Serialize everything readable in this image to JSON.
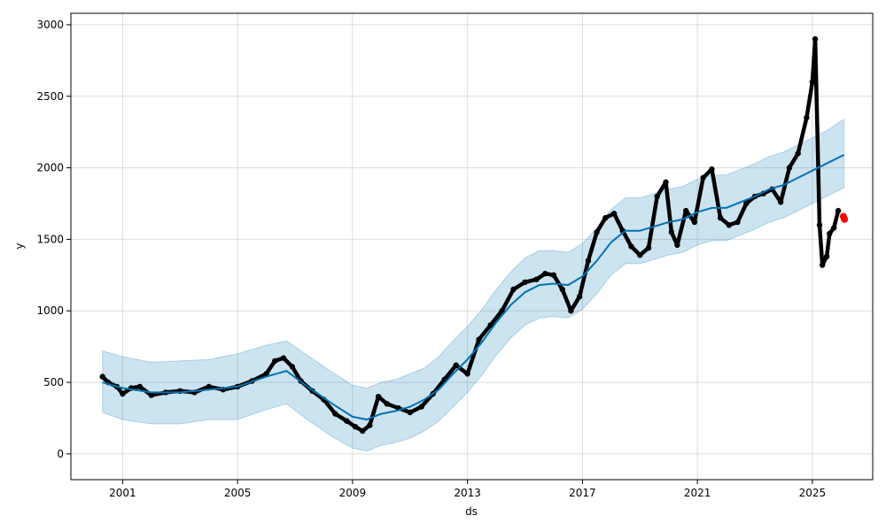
{
  "chart_data": {
    "type": "line",
    "title": "",
    "xlabel": "ds",
    "ylabel": "y",
    "xlim": [
      1999.2,
      2027.1
    ],
    "ylim": [
      -180,
      3080
    ],
    "grid": true,
    "x_ticks": [
      2001,
      2005,
      2009,
      2013,
      2017,
      2021,
      2025
    ],
    "y_ticks": [
      0,
      500,
      1000,
      1500,
      2000,
      2500,
      3000
    ],
    "colors": {
      "observed": "#000000",
      "forecast": "#0072b2",
      "interval": "#0072b2",
      "recent": "#ff0000",
      "grid": "#dddddd"
    },
    "series": [
      {
        "name": "",
        "role": "observed points",
        "x": [
          2000.3,
          2000.5,
          2000.8,
          2001.0,
          2001.3,
          2001.6,
          2002.0,
          2002.5,
          2003.0,
          2003.5,
          2004.0,
          2004.5,
          2005.0,
          2005.5,
          2006.0,
          2006.3,
          2006.6,
          2006.9,
          2007.2,
          2007.6,
          2008.0,
          2008.4,
          2008.8,
          2009.1,
          2009.35,
          2009.6,
          2009.9,
          2010.2,
          2010.6,
          2011.0,
          2011.4,
          2011.8,
          2012.2,
          2012.6,
          2013.0,
          2013.4,
          2013.8,
          2014.2,
          2014.6,
          2015.0,
          2015.4,
          2015.7,
          2016.0,
          2016.3,
          2016.6,
          2016.9,
          2017.2,
          2017.5,
          2017.8,
          2018.1,
          2018.4,
          2018.7,
          2019.0,
          2019.3,
          2019.6,
          2019.9,
          2020.1,
          2020.3,
          2020.6,
          2020.9,
          2021.2,
          2021.5,
          2021.8,
          2022.1,
          2022.4,
          2022.7,
          2023.0,
          2023.3,
          2023.6,
          2023.9,
          2024.2,
          2024.5,
          2024.8,
          2025.0,
          2025.1,
          2025.25,
          2025.35,
          2025.5,
          2025.6,
          2025.75,
          2025.9
        ],
        "y": [
          540,
          500,
          470,
          420,
          460,
          470,
          410,
          430,
          440,
          430,
          470,
          450,
          470,
          510,
          560,
          650,
          670,
          610,
          510,
          440,
          380,
          280,
          230,
          190,
          160,
          200,
          400,
          350,
          320,
          290,
          330,
          420,
          520,
          620,
          560,
          800,
          900,
          1000,
          1150,
          1200,
          1220,
          1260,
          1250,
          1150,
          1000,
          1100,
          1350,
          1550,
          1650,
          1680,
          1560,
          1450,
          1390,
          1440,
          1800,
          1900,
          1550,
          1460,
          1700,
          1620,
          1930,
          1990,
          1650,
          1600,
          1620,
          1750,
          1800,
          1820,
          1850,
          1760,
          2000,
          2100,
          2350,
          2600,
          2900,
          1600,
          1320,
          1380,
          1540,
          1580,
          1700
        ]
      },
      {
        "name": "",
        "role": "forecast",
        "x": [
          2000.3,
          2001.0,
          2002.0,
          2003.0,
          2004.0,
          2005.0,
          2006.0,
          2006.7,
          2007.5,
          2008.3,
          2009.0,
          2009.5,
          2010.0,
          2010.5,
          2011.0,
          2011.5,
          2012.0,
          2012.5,
          2013.0,
          2013.5,
          2014.0,
          2014.5,
          2015.0,
          2015.5,
          2016.0,
          2016.5,
          2017.0,
          2017.5,
          2018.0,
          2018.5,
          2019.0,
          2019.5,
          2020.0,
          2020.5,
          2021.0,
          2021.5,
          2022.0,
          2022.5,
          2023.0,
          2023.5,
          2024.0,
          2024.5,
          2025.0,
          2025.5,
          2026.1
        ],
        "y": [
          500,
          460,
          430,
          430,
          450,
          470,
          540,
          580,
          460,
          350,
          260,
          240,
          280,
          300,
          330,
          380,
          450,
          560,
          660,
          780,
          920,
          1040,
          1130,
          1180,
          1190,
          1180,
          1240,
          1350,
          1480,
          1560,
          1560,
          1590,
          1620,
          1640,
          1690,
          1720,
          1720,
          1760,
          1800,
          1850,
          1880,
          1930,
          1980,
          2030,
          2090
        ]
      }
    ],
    "interval": {
      "name": "",
      "x": [
        2000.3,
        2001.0,
        2002.0,
        2003.0,
        2004.0,
        2005.0,
        2006.0,
        2006.7,
        2007.5,
        2008.3,
        2009.0,
        2009.5,
        2010.0,
        2010.5,
        2011.0,
        2011.5,
        2012.0,
        2012.5,
        2013.0,
        2013.5,
        2014.0,
        2014.5,
        2015.0,
        2015.5,
        2016.0,
        2016.5,
        2017.0,
        2017.5,
        2018.0,
        2018.5,
        2019.0,
        2019.5,
        2020.0,
        2020.5,
        2021.0,
        2021.5,
        2022.0,
        2022.5,
        2023.0,
        2023.5,
        2024.0,
        2024.5,
        2025.0,
        2025.5,
        2026.1
      ],
      "upper": [
        720,
        680,
        640,
        650,
        660,
        700,
        760,
        790,
        680,
        570,
        480,
        460,
        500,
        520,
        560,
        600,
        680,
        790,
        890,
        1010,
        1150,
        1270,
        1370,
        1420,
        1420,
        1410,
        1470,
        1580,
        1710,
        1790,
        1790,
        1820,
        1850,
        1870,
        1920,
        1950,
        1950,
        1990,
        2030,
        2080,
        2110,
        2160,
        2210,
        2260,
        2340
      ],
      "lower": [
        290,
        240,
        210,
        210,
        240,
        240,
        310,
        350,
        230,
        120,
        40,
        20,
        60,
        80,
        110,
        160,
        230,
        330,
        430,
        550,
        690,
        810,
        900,
        950,
        960,
        950,
        1010,
        1120,
        1250,
        1330,
        1330,
        1360,
        1390,
        1410,
        1460,
        1490,
        1490,
        1530,
        1570,
        1620,
        1650,
        1700,
        1750,
        1800,
        1860
      ]
    },
    "recent_points": {
      "x": [
        2026.08,
        2026.12
      ],
      "y": [
        1660,
        1640
      ]
    }
  }
}
